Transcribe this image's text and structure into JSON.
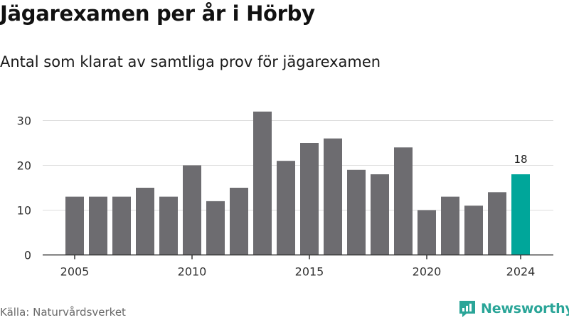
{
  "title": "Jägarexamen per år i Hörby",
  "subtitle": "Antal som klarat av samtliga prov för jägarexamen",
  "source": "Källa: Naturvårdsverket",
  "brand": {
    "name": "Newsworthy",
    "icon": "newsworthy-logo-icon",
    "color": "#2aa598"
  },
  "colors": {
    "bar": "#6d6c70",
    "highlight": "#00a69a",
    "grid": "#dddddd",
    "axis": "#333333"
  },
  "chart_data": {
    "type": "bar",
    "x": [
      2005,
      2006,
      2007,
      2008,
      2009,
      2010,
      2011,
      2012,
      2013,
      2014,
      2015,
      2016,
      2017,
      2018,
      2019,
      2020,
      2021,
      2022,
      2023,
      2024
    ],
    "values": [
      13,
      13,
      13,
      15,
      13,
      20,
      12,
      15,
      32,
      21,
      25,
      26,
      19,
      18,
      24,
      10,
      13,
      11,
      14,
      18
    ],
    "highlight_index": 19,
    "highlight_label": "18",
    "x_ticks": [
      "2005",
      "2010",
      "2015",
      "2020",
      "2024"
    ],
    "y_ticks": [
      "0",
      "10",
      "20",
      "30"
    ],
    "ylim": [
      0,
      32
    ],
    "grid": "horizontal"
  }
}
